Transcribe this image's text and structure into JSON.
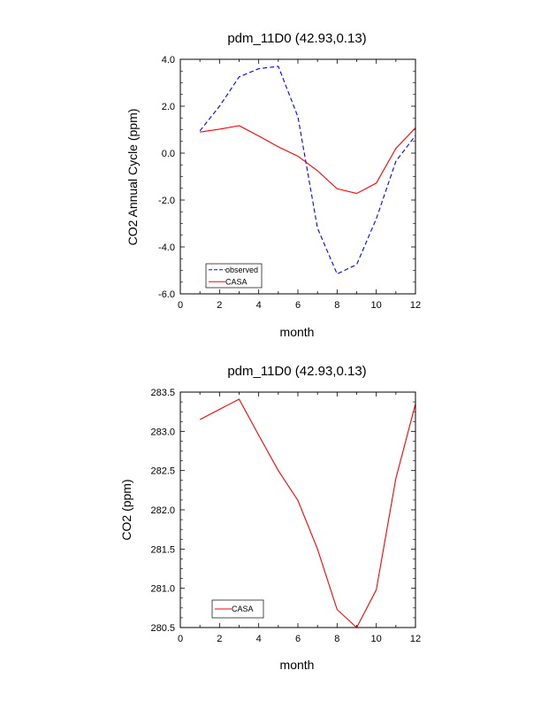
{
  "colors": {
    "observed": "#0000ff",
    "casa": "#ff0000",
    "axis": "#000000"
  },
  "chart_data": [
    {
      "type": "line",
      "title": "pdm_11D0 (42.93,0.13)",
      "xlabel": "month",
      "ylabel": "CO2 Annual Cycle (ppm)",
      "xlim": [
        0,
        12
      ],
      "ylim": [
        -6.0,
        4.0
      ],
      "xticks": [
        0,
        2,
        4,
        6,
        8,
        10,
        12
      ],
      "yticks": [
        -6.0,
        -4.0,
        -2.0,
        0.0,
        2.0,
        4.0
      ],
      "xtick_labels": [
        "0",
        "2",
        "4",
        "6",
        "8",
        "10",
        "12"
      ],
      "ytick_labels": [
        "-6.0",
        "-4.0",
        "-2.0",
        "0.0",
        "2.0",
        "4.0"
      ],
      "legend_position": "bottom-left",
      "x": [
        1,
        2,
        3,
        4,
        5,
        6,
        7,
        8,
        9,
        10,
        11,
        12
      ],
      "series": [
        {
          "name": "observed",
          "style": "dashed",
          "color": "#0000ff",
          "values": [
            0.95,
            2.0,
            3.25,
            3.6,
            3.7,
            1.55,
            -3.2,
            -5.15,
            -4.75,
            -2.8,
            -0.35,
            0.75
          ]
        },
        {
          "name": "CASA",
          "style": "solid",
          "color": "#ff0000",
          "values": [
            0.9,
            1.02,
            1.17,
            0.73,
            0.27,
            -0.13,
            -0.75,
            -1.52,
            -1.72,
            -1.28,
            0.2,
            1.08
          ]
        }
      ]
    },
    {
      "type": "line",
      "title": "pdm_11D0 (42.93,0.13)",
      "xlabel": "month",
      "ylabel": "CO2 (ppm)",
      "xlim": [
        0,
        12
      ],
      "ylim": [
        280.5,
        283.5
      ],
      "xticks": [
        0,
        2,
        4,
        6,
        8,
        10,
        12
      ],
      "yticks": [
        280.5,
        281.0,
        281.5,
        282.0,
        282.5,
        283.0,
        283.5
      ],
      "xtick_labels": [
        "0",
        "2",
        "4",
        "6",
        "8",
        "10",
        "12"
      ],
      "ytick_labels": [
        "280.5",
        "281.0",
        "281.5",
        "282.0",
        "282.5",
        "283.0",
        "283.5"
      ],
      "legend_position": "bottom-left",
      "x": [
        1,
        2,
        3,
        4,
        5,
        6,
        7,
        8,
        9,
        10,
        11,
        12
      ],
      "series": [
        {
          "name": "CASA",
          "style": "solid",
          "color": "#ff0000",
          "values": [
            283.15,
            283.28,
            283.41,
            282.95,
            282.5,
            282.12,
            281.5,
            280.73,
            280.5,
            280.98,
            282.4,
            283.35
          ]
        }
      ]
    }
  ]
}
